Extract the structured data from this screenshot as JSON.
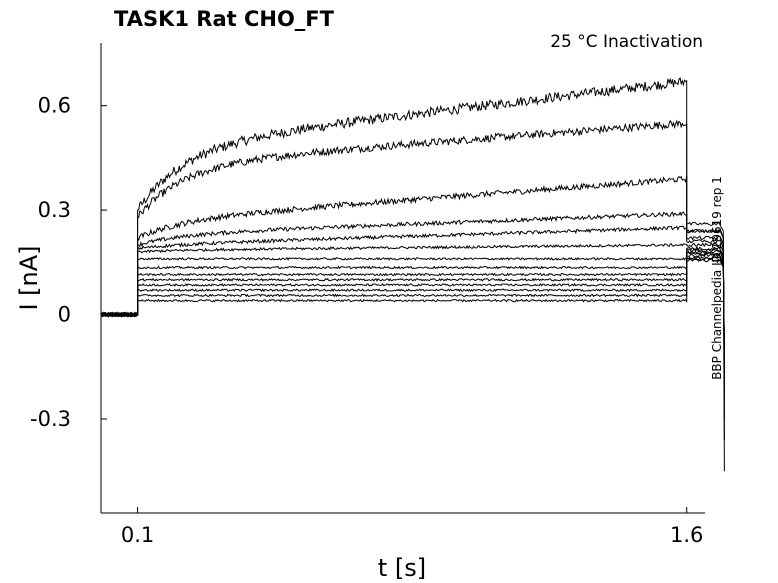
{
  "chart_data": {
    "type": "line",
    "title": "TASK1  Rat  CHO_FT",
    "subtitle": "25 °C  Inactivation",
    "xlabel": "t [s]",
    "ylabel": "I [nA]",
    "side_label": "BBP Channelpedia ID 29619 rep 1",
    "xlim": [
      0.0,
      1.65
    ],
    "ylim": [
      -0.57,
      0.78
    ],
    "x_ticks": [
      0.1,
      1.6
    ],
    "x_tick_labels": [
      "0.1",
      "1.6"
    ],
    "y_ticks": [
      0.6,
      0.3,
      0,
      -0.3
    ],
    "y_tick_labels": [
      "0.6",
      "0.3",
      "0",
      "-0.3"
    ],
    "grid": false,
    "legend": "none",
    "line_color": "#000000",
    "pulse": {
      "start": 0.1,
      "end": 1.6,
      "tail_end": 1.7,
      "baseline": 0.0
    },
    "sweeps": [
      {
        "onset": 0.3,
        "early": 0.48,
        "end": 0.67,
        "tail": 0.24,
        "trough": -0.45,
        "settle": -0.02
      },
      {
        "onset": 0.28,
        "early": 0.43,
        "end": 0.55,
        "tail": 0.26,
        "trough": -0.36,
        "settle": -0.03
      },
      {
        "onset": 0.22,
        "early": 0.27,
        "end": 0.39,
        "tail": 0.24,
        "trough": -0.3,
        "settle": -0.05
      },
      {
        "onset": 0.2,
        "early": 0.23,
        "end": 0.29,
        "tail": 0.22,
        "trough": -0.25,
        "settle": -0.06
      },
      {
        "onset": 0.19,
        "early": 0.2,
        "end": 0.25,
        "tail": 0.21,
        "trough": -0.22,
        "settle": -0.07
      },
      {
        "onset": 0.18,
        "early": 0.185,
        "end": 0.2,
        "tail": 0.2,
        "trough": -0.19,
        "settle": -0.08
      },
      {
        "onset": 0.16,
        "early": 0.16,
        "end": 0.16,
        "tail": 0.19,
        "trough": -0.17,
        "settle": -0.09
      },
      {
        "onset": 0.135,
        "early": 0.135,
        "end": 0.135,
        "tail": 0.185,
        "trough": -0.15,
        "settle": -0.1
      },
      {
        "onset": 0.115,
        "early": 0.115,
        "end": 0.115,
        "tail": 0.18,
        "trough": -0.14,
        "settle": -0.105
      },
      {
        "onset": 0.1,
        "early": 0.1,
        "end": 0.1,
        "tail": 0.175,
        "trough": -0.13,
        "settle": -0.11
      },
      {
        "onset": 0.085,
        "early": 0.085,
        "end": 0.085,
        "tail": 0.17,
        "trough": -0.12,
        "settle": -0.115
      },
      {
        "onset": 0.07,
        "early": 0.07,
        "end": 0.07,
        "tail": 0.165,
        "trough": -0.11,
        "settle": -0.12
      },
      {
        "onset": 0.055,
        "early": 0.055,
        "end": 0.055,
        "tail": 0.16,
        "trough": -0.1,
        "settle": -0.125
      },
      {
        "onset": 0.04,
        "early": 0.04,
        "end": 0.04,
        "tail": 0.155,
        "trough": -0.09,
        "settle": -0.13
      }
    ]
  }
}
